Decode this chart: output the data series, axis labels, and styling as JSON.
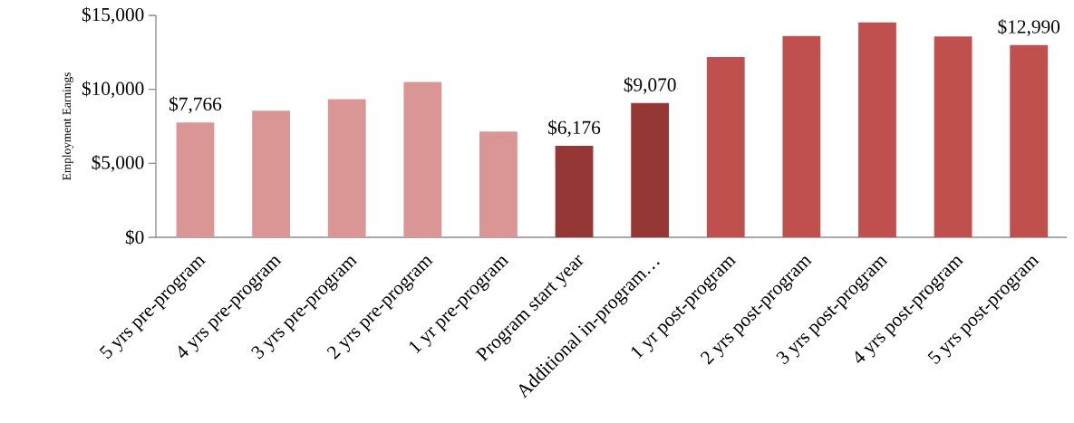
{
  "chart_data": {
    "type": "bar",
    "ylabel": "Employment Earnings",
    "categories": [
      "5 yrs pre-program",
      "4 yrs pre-program",
      "3 yrs pre-program",
      "2 yrs pre-program",
      "1 yr pre-program",
      "Program start year",
      "Additional in-program…",
      "1 yr post-program",
      "2 yrs post-program",
      "3 yrs post-program",
      "4 yrs post-program",
      "5 yrs post-program"
    ],
    "values": [
      7766,
      8560,
      9330,
      10500,
      7140,
      6176,
      9070,
      12190,
      13600,
      14520,
      13580,
      12990
    ],
    "value_labels": [
      "$7,766",
      null,
      null,
      null,
      null,
      "$6,176",
      "$9,070",
      null,
      null,
      null,
      null,
      "$12,990"
    ],
    "colors": [
      "#d99694",
      "#d99694",
      "#d99694",
      "#d99694",
      "#d99694",
      "#953735",
      "#953735",
      "#c0504d",
      "#c0504d",
      "#c0504d",
      "#c0504d",
      "#c0504d"
    ],
    "ylim": [
      0,
      15000
    ],
    "yticks": [
      {
        "value": 0,
        "label": "$0"
      },
      {
        "value": 5000,
        "label": "$5,000"
      },
      {
        "value": 10000,
        "label": "$10,000"
      },
      {
        "value": 15000,
        "label": "$15,000"
      }
    ]
  }
}
